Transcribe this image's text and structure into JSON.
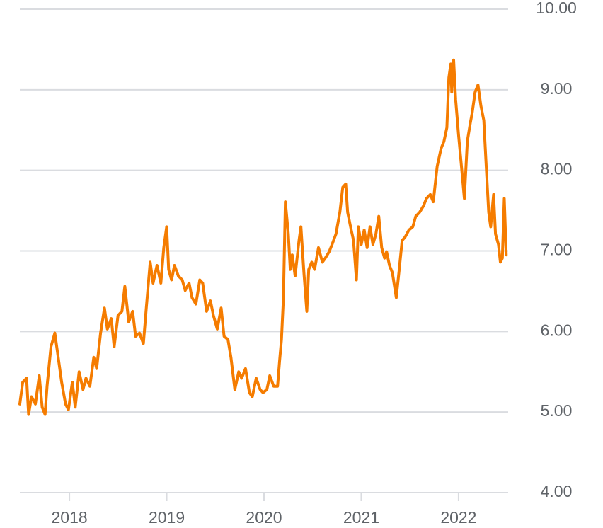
{
  "chart_data": {
    "type": "line",
    "x": [
      2017.49,
      2017.52,
      2017.56,
      2017.58,
      2017.61,
      2017.65,
      2017.69,
      2017.72,
      2017.75,
      2017.77,
      2017.81,
      2017.85,
      2017.88,
      2017.92,
      2017.96,
      2017.99,
      2018.03,
      2018.06,
      2018.1,
      2018.14,
      2018.17,
      2018.21,
      2018.25,
      2018.28,
      2018.32,
      2018.36,
      2018.39,
      2018.43,
      2018.46,
      2018.5,
      2018.54,
      2018.57,
      2018.61,
      2018.65,
      2018.68,
      2018.72,
      2018.76,
      2018.79,
      2018.83,
      2018.86,
      2018.9,
      2018.94,
      2018.97,
      2019.0,
      2019.02,
      2019.05,
      2019.08,
      2019.12,
      2019.16,
      2019.19,
      2019.23,
      2019.26,
      2019.3,
      2019.34,
      2019.37,
      2019.41,
      2019.45,
      2019.48,
      2019.52,
      2019.56,
      2019.59,
      2019.63,
      2019.66,
      2019.7,
      2019.74,
      2019.77,
      2019.81,
      2019.85,
      2019.88,
      2019.92,
      2019.96,
      2019.99,
      2020.03,
      2020.06,
      2020.1,
      2020.14,
      2020.16,
      2020.18,
      2020.2,
      2020.22,
      2020.25,
      2020.27,
      2020.29,
      2020.32,
      2020.36,
      2020.38,
      2020.41,
      2020.44,
      2020.46,
      2020.49,
      2020.52,
      2020.56,
      2020.6,
      2020.63,
      2020.67,
      2020.7,
      2020.74,
      2020.78,
      2020.81,
      2020.84,
      2020.86,
      2020.89,
      2020.92,
      2020.95,
      2020.97,
      2021.0,
      2021.03,
      2021.06,
      2021.09,
      2021.12,
      2021.15,
      2021.18,
      2021.21,
      2021.24,
      2021.26,
      2021.29,
      2021.32,
      2021.36,
      2021.39,
      2021.42,
      2021.45,
      2021.49,
      2021.53,
      2021.56,
      2021.6,
      2021.64,
      2021.67,
      2021.71,
      2021.74,
      2021.78,
      2021.82,
      2021.85,
      2021.88,
      2021.9,
      2021.92,
      2021.93,
      2021.95,
      2021.97,
      2022.0,
      2022.03,
      2022.06,
      2022.09,
      2022.12,
      2022.14,
      2022.17,
      2022.2,
      2022.23,
      2022.26,
      2022.29,
      2022.31,
      2022.33,
      2022.36,
      2022.38,
      2022.41,
      2022.43,
      2022.45,
      2022.47,
      2022.49
    ],
    "series": [
      {
        "color": "#f57c00",
        "values": [
          5.1,
          5.37,
          5.42,
          4.97,
          5.19,
          5.1,
          5.45,
          5.06,
          4.97,
          5.32,
          5.81,
          5.98,
          5.72,
          5.37,
          5.1,
          5.03,
          5.37,
          5.06,
          5.5,
          5.28,
          5.42,
          5.32,
          5.68,
          5.54,
          5.98,
          6.29,
          6.03,
          6.16,
          5.81,
          6.2,
          6.25,
          6.56,
          6.12,
          6.25,
          5.94,
          5.98,
          5.85,
          6.29,
          6.86,
          6.6,
          6.82,
          6.6,
          7.04,
          7.3,
          6.77,
          6.64,
          6.82,
          6.69,
          6.64,
          6.51,
          6.6,
          6.42,
          6.34,
          6.64,
          6.6,
          6.25,
          6.38,
          6.2,
          6.03,
          6.29,
          5.94,
          5.9,
          5.68,
          5.28,
          5.5,
          5.42,
          5.54,
          5.24,
          5.19,
          5.42,
          5.28,
          5.24,
          5.28,
          5.45,
          5.32,
          5.32,
          5.63,
          5.9,
          6.42,
          7.61,
          7.21,
          6.77,
          6.95,
          6.69,
          7.13,
          7.3,
          6.73,
          6.25,
          6.77,
          6.86,
          6.77,
          7.04,
          6.86,
          6.91,
          6.99,
          7.08,
          7.21,
          7.48,
          7.79,
          7.83,
          7.48,
          7.3,
          7.13,
          6.64,
          7.3,
          7.08,
          7.26,
          7.04,
          7.3,
          7.08,
          7.21,
          7.43,
          7.04,
          6.91,
          6.99,
          6.82,
          6.73,
          6.42,
          6.77,
          7.13,
          7.17,
          7.26,
          7.3,
          7.43,
          7.48,
          7.56,
          7.65,
          7.7,
          7.61,
          8.05,
          8.27,
          8.36,
          8.53,
          9.15,
          9.32,
          8.97,
          9.37,
          8.88,
          8.44,
          8.05,
          7.65,
          8.36,
          8.58,
          8.71,
          8.97,
          9.06,
          8.8,
          8.62,
          7.92,
          7.48,
          7.3,
          7.7,
          7.21,
          7.08,
          6.86,
          6.91,
          7.65,
          6.95
        ]
      }
    ],
    "xlim": [
      2017.49,
      2022.51
    ],
    "xticks": [
      2018,
      2019,
      2020,
      2021,
      2022
    ],
    "ylim": [
      4,
      10
    ],
    "yticks": [
      {
        "value": 4,
        "label": "4.00"
      },
      {
        "value": 5,
        "label": "5.00"
      },
      {
        "value": 6,
        "label": "6.00"
      },
      {
        "value": 7,
        "label": "7.00"
      },
      {
        "value": 8,
        "label": "8.00"
      },
      {
        "value": 9,
        "label": "9.00"
      },
      {
        "value": 10,
        "label": "10.00"
      }
    ],
    "grid": true
  }
}
